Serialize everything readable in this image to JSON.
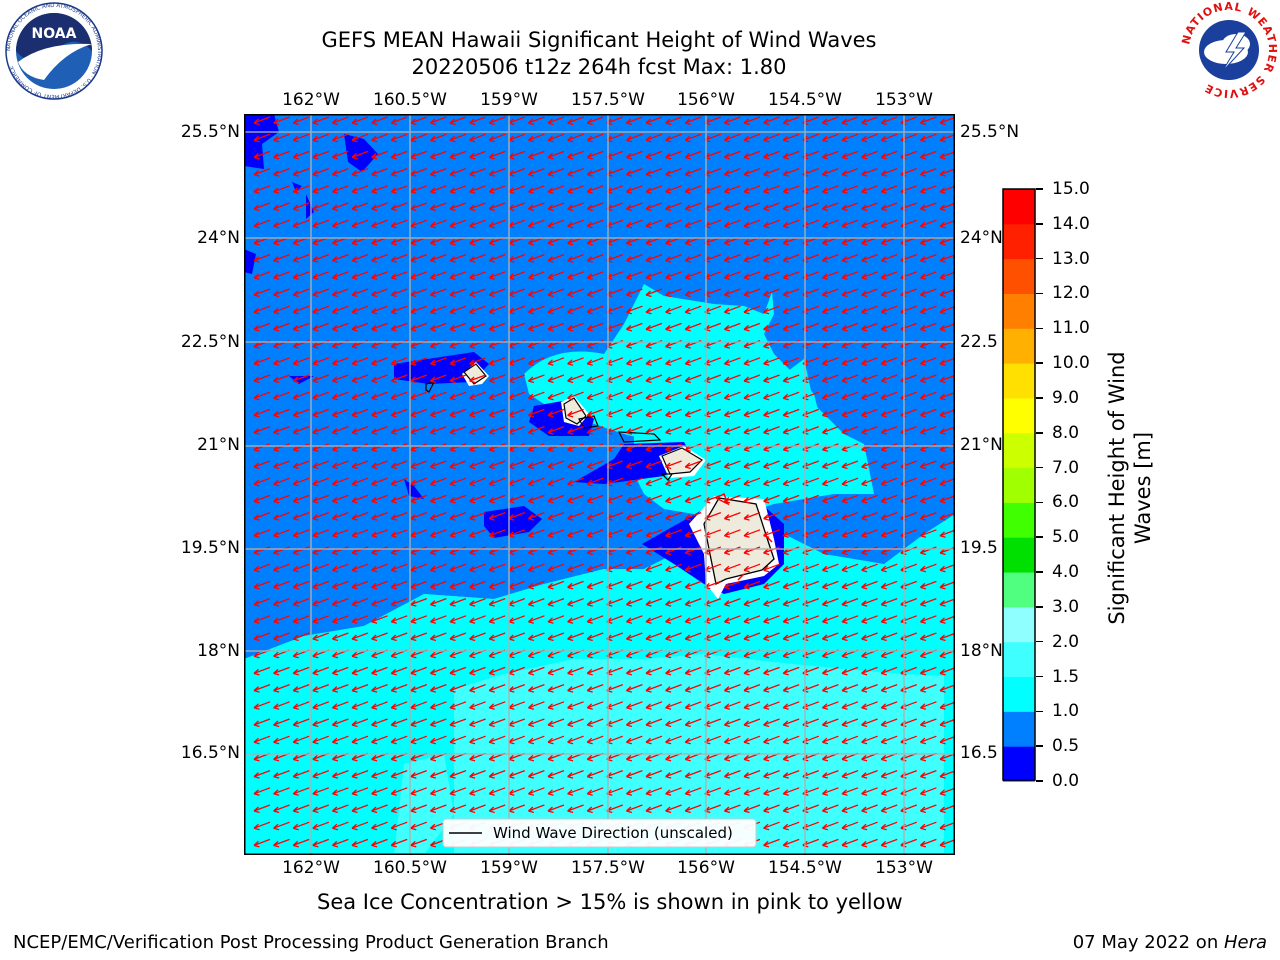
{
  "title_line1": "GEFS MEAN Hawaii Significant Height of Wind Waves",
  "title_line2": "20220506 t12z 264h fcst   Max: 1.80",
  "map": {
    "lon_labels": [
      "162°W",
      "160.5°W",
      "159°W",
      "157.5°W",
      "156°W",
      "154.5°W",
      "153°W"
    ],
    "lat_labels": [
      "25.5°N",
      "24°N",
      "22.5°N",
      "21°N",
      "19.5°N",
      "18°N",
      "16.5°N"
    ],
    "lat_labels_right": [
      "25.5°N",
      "24°N",
      "22.5",
      "21°N",
      "19.5",
      "18°N",
      "16.5"
    ],
    "legend_label": "Wind Wave Direction (unscaled)",
    "arrow_color": "#ff0000",
    "land_color": "#efebdc"
  },
  "colorbar": {
    "label_line1": "Significant Height of Wind",
    "label_line2": "Waves [m]",
    "ticks": [
      "0.0",
      "0.5",
      "1.0",
      "1.5",
      "2.0",
      "3.0",
      "4.0",
      "5.0",
      "6.0",
      "7.0",
      "8.0",
      "9.0",
      "10.0",
      "11.0",
      "12.0",
      "13.0",
      "14.0",
      "15.0"
    ],
    "colors": [
      "#0000ff",
      "#0080ff",
      "#00ffff",
      "#40ffff",
      "#90ffff",
      "#50ff80",
      "#00e000",
      "#40ff00",
      "#a0ff00",
      "#ccff00",
      "#ffff00",
      "#ffe000",
      "#ffb000",
      "#ff8000",
      "#ff5000",
      "#ff2000",
      "#ff0000"
    ]
  },
  "sea_ice_note": "Sea Ice Concentration > 15% is shown in pink to yellow",
  "footer_left": "NCEP/EMC/Verification Post Processing Product Generation Branch",
  "footer_right_date": "07 May 2022 on ",
  "footer_right_host": "Hera",
  "logos": {
    "noaa_text": "NOAA",
    "noaa_ring_text": "NATIONAL OCEANIC AND ATMOSPHERIC ADMINISTRATION · U.S. DEPARTMENT OF COMMERCE",
    "nws_ring_text": "NATIONAL WEATHER SERVICE"
  }
}
